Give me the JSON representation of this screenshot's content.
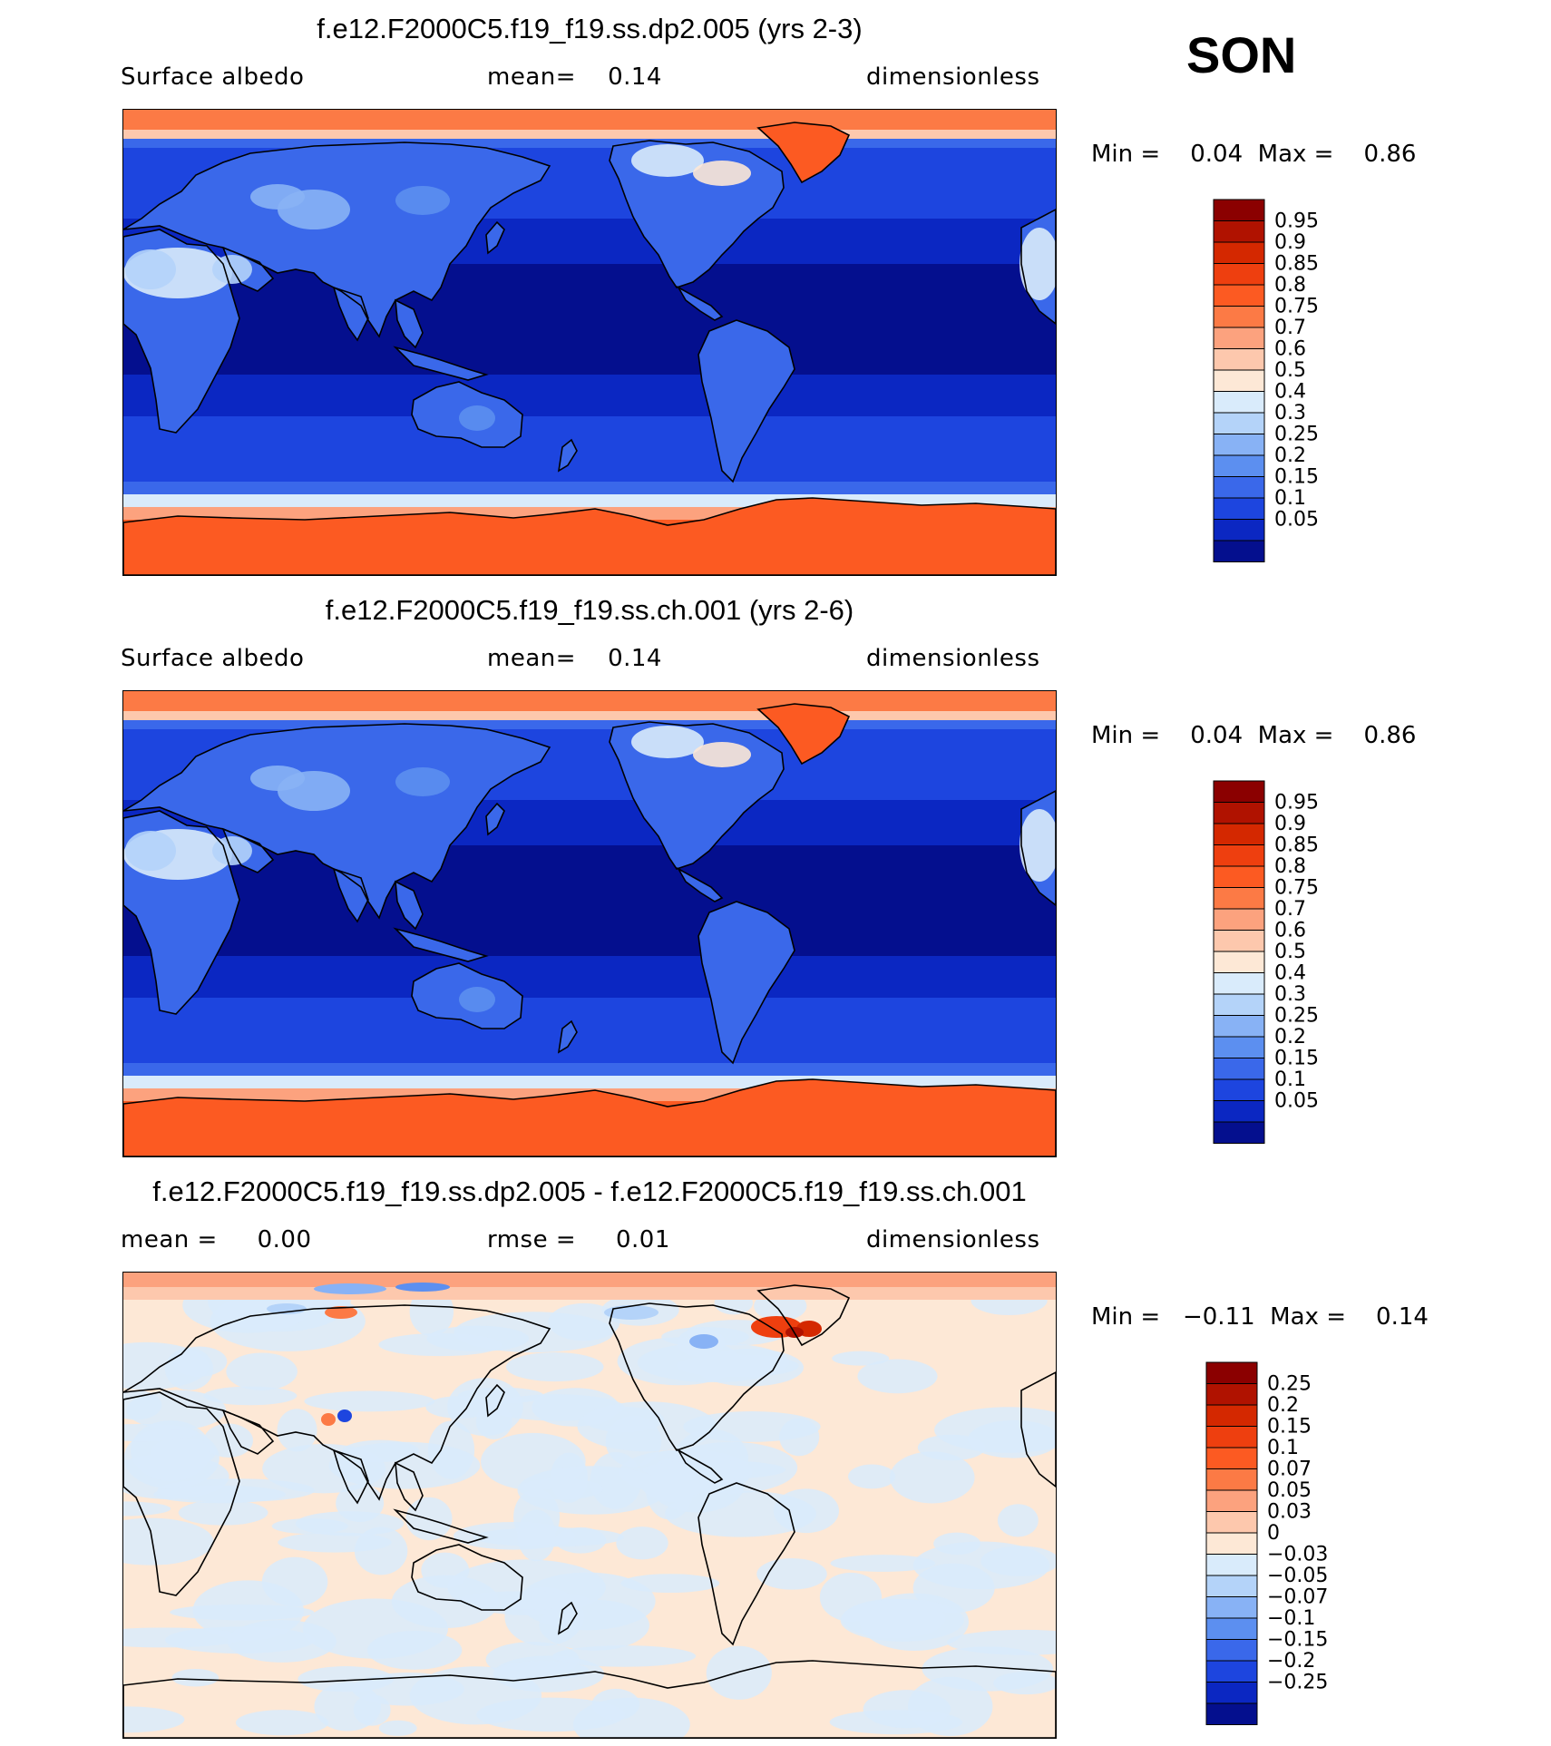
{
  "season": "SON",
  "panels": [
    {
      "title": "f.e12.F2000C5.f19_f19.ss.dp2.005 (yrs 2-3)",
      "left_label": "Surface albedo",
      "center_label": "mean=    0.14",
      "right_label": "dimensionless",
      "minmax": "Min =    0.04  Max =    0.86",
      "kind": "field",
      "colorbar": {
        "labels": [
          "0.95",
          "0.9",
          "0.85",
          "0.8",
          "0.75",
          "0.7",
          "0.6",
          "0.5",
          "0.4",
          "0.3",
          "0.25",
          "0.2",
          "0.15",
          "0.1",
          "0.05"
        ],
        "colors": [
          "#8b0000",
          "#b01200",
          "#d42800",
          "#ee3f0f",
          "#fc5a22",
          "#fc7a45",
          "#fca27e",
          "#fdc8ad",
          "#fde8d6",
          "#d9ebfb",
          "#b4d3f9",
          "#88b2f5",
          "#5c8ff0",
          "#3a68ea",
          "#1d45df",
          "#0b27c2",
          "#040f8e"
        ]
      },
      "chart_data": {
        "type": "heatmap",
        "title": "f.e12.F2000C5.f19_f19.ss.dp2.005 (yrs 2-3)",
        "variable": "Surface albedo",
        "units": "dimensionless",
        "mean": 0.14,
        "min": 0.04,
        "max": 0.86,
        "contour_levels": [
          0.05,
          0.1,
          0.15,
          0.2,
          0.25,
          0.3,
          0.4,
          0.5,
          0.6,
          0.7,
          0.75,
          0.8,
          0.85,
          0.9,
          0.95
        ]
      }
    },
    {
      "title": "f.e12.F2000C5.f19_f19.ss.ch.001 (yrs 2-6)",
      "left_label": "Surface albedo",
      "center_label": "mean=    0.14",
      "right_label": "dimensionless",
      "minmax": "Min =    0.04  Max =    0.86",
      "kind": "field",
      "colorbar": {
        "labels": [
          "0.95",
          "0.9",
          "0.85",
          "0.8",
          "0.75",
          "0.7",
          "0.6",
          "0.5",
          "0.4",
          "0.3",
          "0.25",
          "0.2",
          "0.15",
          "0.1",
          "0.05"
        ],
        "colors": [
          "#8b0000",
          "#b01200",
          "#d42800",
          "#ee3f0f",
          "#fc5a22",
          "#fc7a45",
          "#fca27e",
          "#fdc8ad",
          "#fde8d6",
          "#d9ebfb",
          "#b4d3f9",
          "#88b2f5",
          "#5c8ff0",
          "#3a68ea",
          "#1d45df",
          "#0b27c2",
          "#040f8e"
        ]
      },
      "chart_data": {
        "type": "heatmap",
        "title": "f.e12.F2000C5.f19_f19.ss.ch.001 (yrs 2-6)",
        "variable": "Surface albedo",
        "units": "dimensionless",
        "mean": 0.14,
        "min": 0.04,
        "max": 0.86,
        "contour_levels": [
          0.05,
          0.1,
          0.15,
          0.2,
          0.25,
          0.3,
          0.4,
          0.5,
          0.6,
          0.7,
          0.75,
          0.8,
          0.85,
          0.9,
          0.95
        ]
      }
    },
    {
      "title": "f.e12.F2000C5.f19_f19.ss.dp2.005 - f.e12.F2000C5.f19_f19.ss.ch.001",
      "left_label": "mean =     0.00",
      "center_label": "rmse =     0.01",
      "right_label": "dimensionless",
      "minmax": "Min =   −0.11  Max =    0.14",
      "kind": "diff",
      "colorbar": {
        "labels": [
          "0.25",
          "0.2",
          "0.15",
          "0.1",
          "0.07",
          "0.05",
          "0.03",
          "0",
          "−0.03",
          "−0.05",
          "−0.07",
          "−0.1",
          "−0.15",
          "−0.2",
          "−0.25"
        ],
        "colors": [
          "#8b0000",
          "#b01200",
          "#d42800",
          "#ee3f0f",
          "#fc5a22",
          "#fc7a45",
          "#fca27e",
          "#fdc8ad",
          "#fde8d6",
          "#d9ebfb",
          "#b4d3f9",
          "#88b2f5",
          "#5c8ff0",
          "#3a68ea",
          "#1d45df",
          "#0b27c2",
          "#040f8e"
        ]
      },
      "chart_data": {
        "type": "heatmap",
        "title": "f.e12.F2000C5.f19_f19.ss.dp2.005 - f.e12.F2000C5.f19_f19.ss.ch.001",
        "units": "dimensionless",
        "mean": 0.0,
        "rmse": 0.01,
        "min": -0.11,
        "max": 0.14,
        "contour_levels": [
          -0.25,
          -0.2,
          -0.15,
          -0.1,
          -0.07,
          -0.05,
          -0.03,
          0,
          0.03,
          0.05,
          0.07,
          0.1,
          0.15,
          0.2,
          0.25
        ]
      }
    }
  ]
}
